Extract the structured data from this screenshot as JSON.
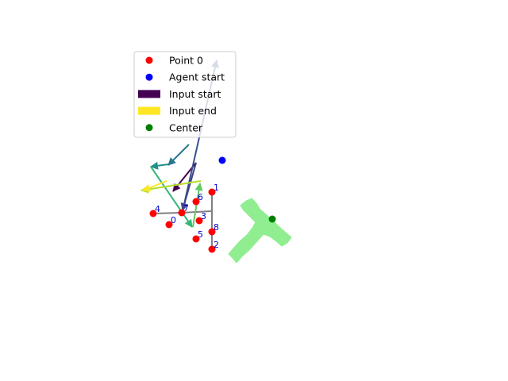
{
  "chart_data": {
    "type": "scatter",
    "title": "",
    "xlabel": "",
    "ylabel": "",
    "axes_visible": false,
    "grid": false,
    "legend_placement": "top-left",
    "xlim": [
      0,
      640
    ],
    "ylim": [
      480,
      0
    ],
    "colors": {
      "point_0": "#ff0000",
      "agent_start": "#0000ff",
      "input_start": "#440154",
      "input_end": "#fde725",
      "center": "#008000",
      "shape": "#90ee90",
      "path": "#808080",
      "index_label": "#0000cc"
    },
    "legend": [
      {
        "label": "Point 0",
        "marker": "circle",
        "color": "#ff0000"
      },
      {
        "label": "Agent start",
        "marker": "circle",
        "color": "#0000ff"
      },
      {
        "label": "Input start",
        "marker": "patch",
        "color": "#440154"
      },
      {
        "label": "Input end",
        "marker": "patch",
        "color": "#fde725"
      },
      {
        "label": "Center",
        "marker": "circle",
        "color": "#008000"
      }
    ],
    "points": [
      {
        "label": "0",
        "x": 213,
        "y": 283
      },
      {
        "label": "1",
        "x": 267,
        "y": 242
      },
      {
        "label": "2",
        "x": 267,
        "y": 314
      },
      {
        "label": "3",
        "x": 251,
        "y": 278
      },
      {
        "label": "4",
        "x": 193,
        "y": 269
      },
      {
        "label": "5",
        "x": 247,
        "y": 301
      },
      {
        "label": "6",
        "x": 247,
        "y": 254
      },
      {
        "label": "7",
        "x": 229,
        "y": 268
      },
      {
        "label": "8",
        "x": 267,
        "y": 292
      }
    ],
    "path_segments": [
      [
        [
          193,
          269
        ],
        [
          229,
          268
        ]
      ],
      [
        [
          229,
          268
        ],
        [
          267,
          266
        ]
      ],
      [
        [
          267,
          242
        ],
        [
          267,
          314
        ]
      ]
    ],
    "agent_start": {
      "x": 280,
      "y": 202
    },
    "center": {
      "x": 343,
      "y": 276
    },
    "shape_polygon": [
      [
        317,
        250
      ],
      [
        323,
        256
      ],
      [
        327,
        263
      ],
      [
        336,
        271
      ],
      [
        345,
        279
      ],
      [
        352,
        286
      ],
      [
        360,
        293
      ],
      [
        367,
        299
      ],
      [
        362,
        306
      ],
      [
        355,
        310
      ],
      [
        348,
        304
      ],
      [
        340,
        298
      ],
      [
        332,
        295
      ],
      [
        323,
        305
      ],
      [
        314,
        315
      ],
      [
        305,
        323
      ],
      [
        298,
        331
      ],
      [
        293,
        325
      ],
      [
        288,
        320
      ],
      [
        294,
        313
      ],
      [
        302,
        304
      ],
      [
        311,
        296
      ],
      [
        318,
        287
      ],
      [
        322,
        280
      ],
      [
        314,
        272
      ],
      [
        307,
        265
      ],
      [
        303,
        259
      ],
      [
        310,
        253
      ]
    ],
    "arrows": [
      {
        "from": [
          247,
          205
        ],
        "to": [
          218,
          241
        ],
        "color": "#440154"
      },
      {
        "from": [
          230,
          266
        ],
        "to": [
          273,
          76
        ],
        "color": "#3b528b"
      },
      {
        "from": [
          247,
          205
        ],
        "to": [
          230,
          265
        ],
        "color": "#414487"
      },
      {
        "from": [
          238,
          182
        ],
        "to": [
          212,
          208
        ],
        "color": "#2a788e"
      },
      {
        "from": [
          212,
          207
        ],
        "to": [
          190,
          210
        ],
        "color": "#21908d"
      },
      {
        "from": [
          190,
          210
        ],
        "to": [
          242,
          286
        ],
        "color": "#35b779"
      },
      {
        "from": [
          243,
          286
        ],
        "to": [
          252,
          231
        ],
        "color": "#5ec962"
      },
      {
        "from": [
          253,
          228
        ],
        "to": [
          178,
          240
        ],
        "color": "#b5de2b"
      },
      {
        "from": [
          210,
          228
        ],
        "to": [
          180,
          240
        ],
        "color": "#fde725"
      }
    ]
  }
}
